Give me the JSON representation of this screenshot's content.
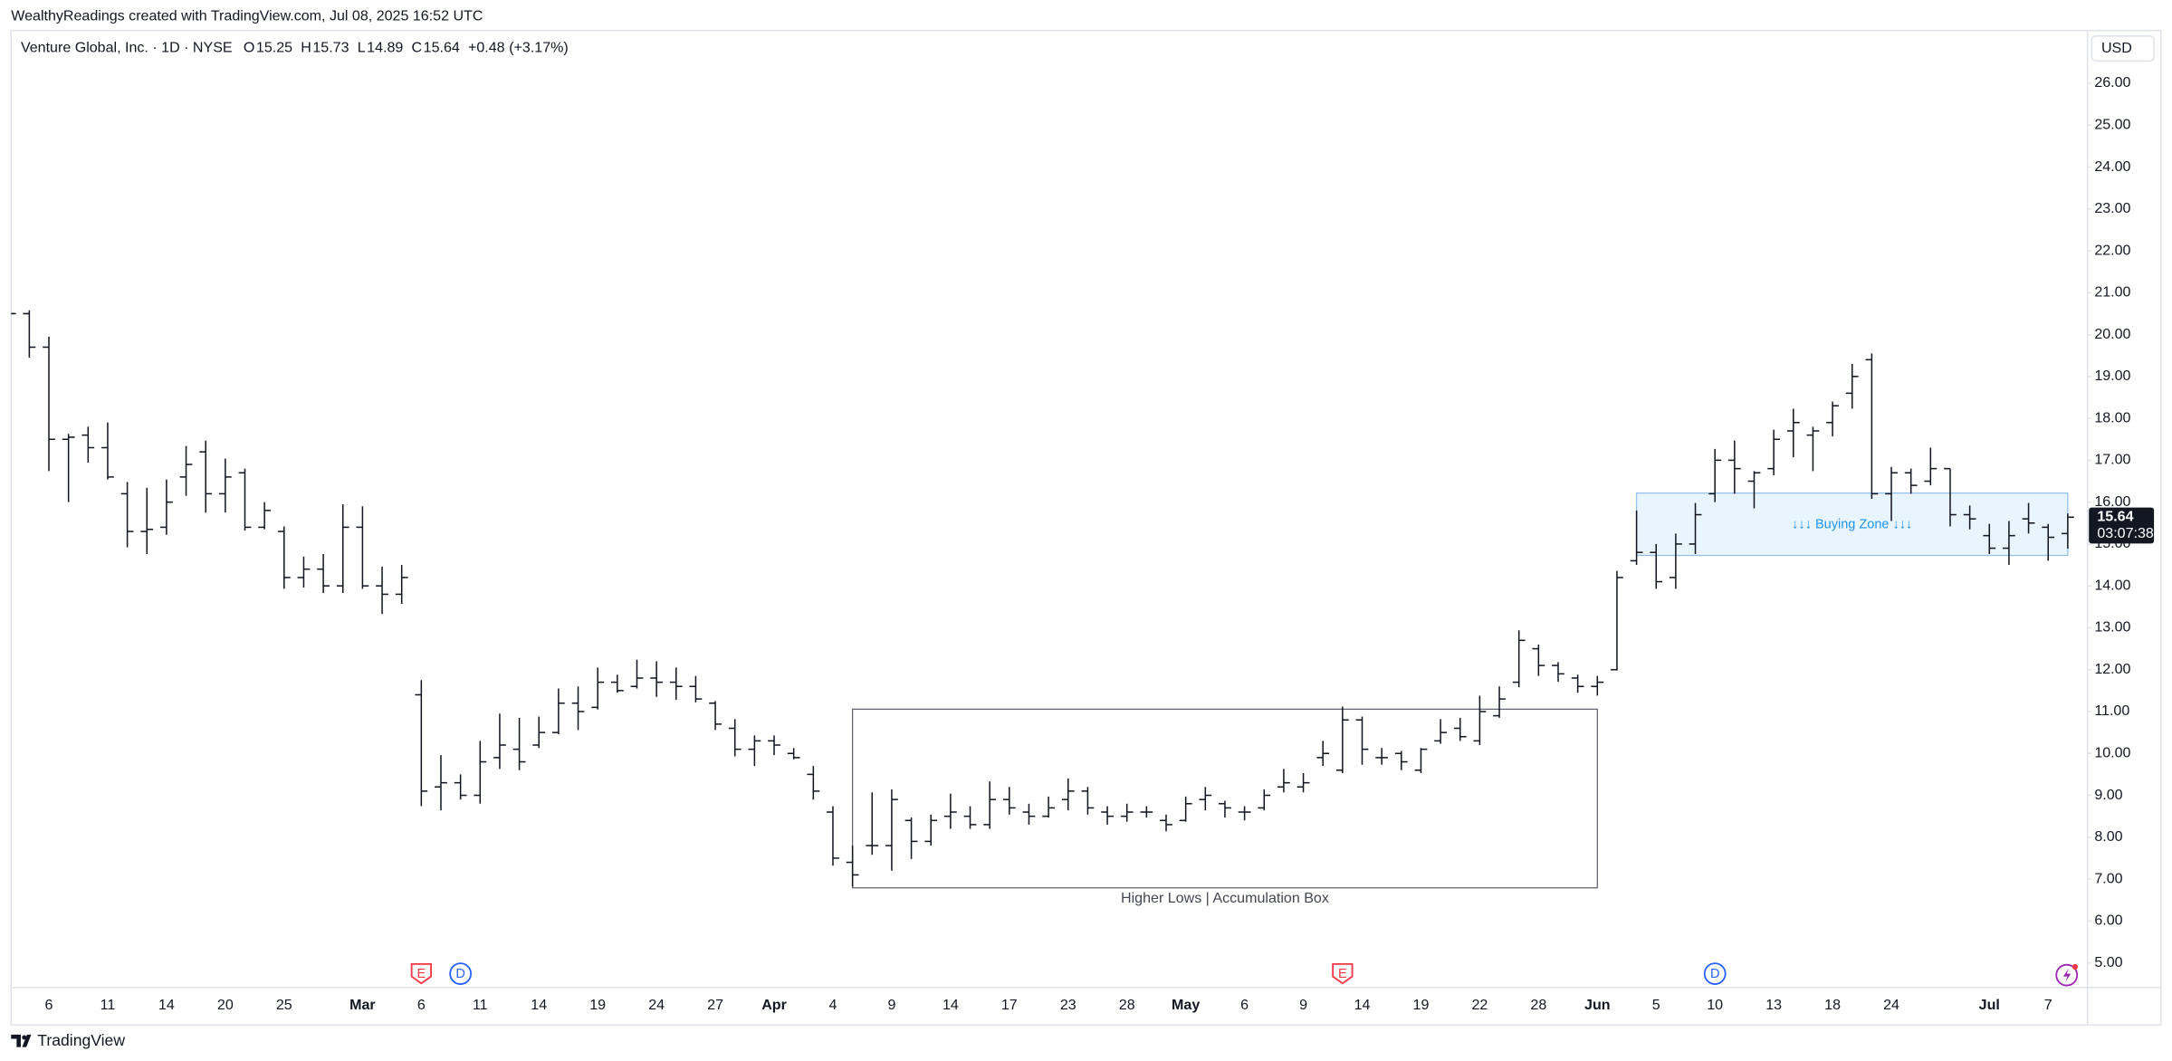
{
  "header": {
    "credit": "WealthyReadings created with TradingView.com, Jul 08, 2025 16:52 UTC",
    "brand": "TradingView"
  },
  "chart_data": {
    "type": "ohlc",
    "legend": {
      "symbol": "Venture Global, Inc. · 1D · NYSE",
      "fields": [
        "O",
        "H",
        "L",
        "C"
      ],
      "change": "+0.48",
      "change_pct": "(+3.17%)"
    },
    "currency": "USD",
    "countdown": "03:07:38",
    "color": "#131722",
    "grid": false,
    "categories": [
      null,
      null,
      "6",
      null,
      null,
      "11",
      null,
      null,
      "14",
      null,
      null,
      "20",
      null,
      null,
      "25",
      null,
      null,
      null,
      "Mar",
      null,
      null,
      "6",
      null,
      null,
      "11",
      null,
      null,
      "14",
      null,
      null,
      "19",
      null,
      null,
      "24",
      null,
      null,
      "27",
      null,
      null,
      "Apr",
      null,
      null,
      "4",
      null,
      null,
      "9",
      null,
      null,
      "14",
      null,
      null,
      "17",
      null,
      null,
      "23",
      null,
      null,
      "28",
      null,
      null,
      "May",
      null,
      null,
      "6",
      null,
      null,
      "9",
      null,
      null,
      "14",
      null,
      null,
      "19",
      null,
      null,
      "22",
      null,
      null,
      "28",
      null,
      null,
      "Jun",
      null,
      null,
      "5",
      null,
      null,
      "10",
      null,
      null,
      "13",
      null,
      null,
      "18",
      null,
      null,
      "24",
      null,
      null,
      null,
      null,
      "Jul",
      null,
      null,
      "7",
      null
    ],
    "open": [
      20.5,
      20.5,
      19.7,
      17.5,
      17.6,
      17.3,
      16.2,
      15.3,
      15.4,
      16.6,
      17.2,
      16.2,
      16.7,
      15.4,
      15.3,
      14.2,
      14.4,
      14.0,
      15.4,
      14.0,
      13.8,
      11.4,
      9.2,
      9.3,
      9.0,
      9.9,
      10.1,
      10.2,
      10.5,
      11.2,
      11.1,
      11.7,
      11.6,
      11.8,
      11.7,
      11.6,
      11.2,
      10.6,
      10.1,
      10.3,
      10.0,
      9.5,
      8.6,
      7.4,
      7.8,
      7.8,
      8.4,
      7.9,
      8.5,
      8.5,
      8.3,
      8.9,
      8.6,
      8.5,
      8.9,
      9.1,
      8.6,
      8.5,
      8.6,
      8.4,
      8.4,
      8.9,
      8.8,
      8.6,
      8.7,
      9.2,
      9.2,
      9.9,
      9.6,
      10.8,
      9.9,
      10.0,
      9.6,
      10.3,
      10.6,
      10.3,
      10.9,
      11.7,
      12.5,
      12.1,
      11.8,
      11.6,
      12.0,
      14.6,
      14.8,
      14.2,
      15.0,
      16.2,
      17.0,
      16.5,
      16.8,
      17.7,
      17.6,
      17.9,
      18.6,
      19.4,
      16.2,
      16.7,
      16.5,
      16.8,
      15.7,
      15.2,
      14.9,
      15.6,
      15.4,
      15.25
    ],
    "high": [
      20.55,
      20.58,
      19.95,
      17.63,
      17.8,
      17.9,
      16.48,
      16.34,
      16.54,
      17.34,
      17.47,
      17.04,
      16.8,
      16.0,
      15.42,
      14.7,
      14.76,
      15.95,
      15.9,
      14.46,
      14.5,
      11.75,
      9.96,
      9.5,
      10.3,
      10.95,
      10.85,
      10.88,
      11.55,
      11.6,
      12.05,
      11.88,
      12.24,
      12.2,
      12.05,
      11.85,
      11.25,
      10.82,
      10.43,
      10.43,
      10.13,
      9.7,
      8.74,
      7.8,
      9.07,
      9.14,
      8.47,
      8.54,
      9.04,
      8.74,
      9.33,
      9.2,
      8.8,
      8.97,
      9.4,
      9.2,
      8.74,
      8.8,
      8.74,
      8.54,
      8.97,
      9.2,
      8.87,
      8.74,
      9.14,
      9.63,
      9.53,
      10.3,
      11.12,
      10.88,
      10.13,
      10.06,
      10.13,
      10.82,
      10.85,
      11.38,
      11.6,
      12.94,
      12.6,
      12.18,
      11.88,
      11.85,
      14.36,
      15.8,
      15.0,
      15.25,
      15.98,
      17.27,
      17.47,
      16.74,
      17.73,
      18.23,
      17.8,
      18.4,
      19.3,
      19.55,
      16.84,
      16.8,
      17.3,
      16.8,
      15.92,
      15.48,
      15.55,
      15.98,
      15.48,
      15.73
    ],
    "low": [
      20.45,
      19.45,
      16.74,
      16.0,
      16.94,
      16.54,
      14.92,
      14.76,
      15.22,
      16.15,
      15.75,
      15.75,
      15.32,
      15.35,
      13.93,
      13.96,
      13.83,
      13.83,
      13.93,
      13.33,
      13.57,
      8.74,
      8.64,
      8.9,
      8.8,
      9.63,
      9.6,
      10.13,
      10.46,
      10.56,
      11.05,
      11.45,
      11.55,
      11.35,
      11.28,
      11.22,
      10.56,
      9.93,
      9.7,
      9.96,
      9.86,
      8.9,
      7.32,
      6.82,
      7.58,
      7.2,
      7.48,
      7.8,
      8.2,
      8.2,
      8.2,
      8.54,
      8.3,
      8.47,
      8.64,
      8.54,
      8.3,
      8.37,
      8.47,
      8.14,
      8.37,
      8.64,
      8.47,
      8.4,
      8.64,
      9.07,
      9.07,
      9.7,
      9.53,
      9.73,
      9.73,
      9.6,
      9.53,
      10.23,
      10.3,
      10.2,
      10.85,
      11.58,
      11.85,
      11.71,
      11.45,
      11.38,
      11.98,
      14.5,
      13.93,
      13.93,
      14.76,
      16.0,
      16.2,
      15.85,
      16.64,
      17.07,
      16.74,
      17.57,
      18.23,
      16.08,
      15.55,
      16.2,
      16.4,
      15.42,
      15.35,
      14.76,
      14.5,
      15.25,
      14.6,
      14.89
    ],
    "close": [
      20.5,
      19.7,
      17.5,
      17.55,
      17.3,
      16.6,
      15.3,
      15.35,
      16.0,
      16.9,
      16.2,
      16.6,
      15.4,
      15.8,
      14.2,
      14.4,
      14.0,
      15.4,
      14.0,
      13.8,
      14.2,
      9.1,
      9.3,
      9.0,
      9.8,
      10.2,
      9.8,
      10.5,
      11.2,
      11.0,
      11.7,
      11.5,
      11.8,
      11.7,
      11.6,
      11.3,
      10.7,
      10.1,
      10.3,
      10.2,
      9.9,
      9.1,
      7.5,
      7.1,
      7.8,
      8.9,
      7.9,
      8.4,
      8.6,
      8.3,
      8.9,
      8.7,
      8.5,
      8.7,
      9.1,
      8.7,
      8.5,
      8.6,
      8.6,
      8.3,
      8.8,
      9.0,
      8.7,
      8.6,
      9.0,
      9.3,
      9.3,
      10.0,
      10.8,
      10.1,
      9.9,
      9.8,
      10.1,
      10.5,
      10.4,
      11.0,
      11.3,
      12.7,
      12.1,
      11.9,
      11.6,
      11.7,
      14.2,
      14.8,
      14.1,
      15.0,
      15.7,
      17.0,
      16.8,
      16.7,
      17.5,
      17.9,
      17.7,
      18.3,
      19.0,
      16.2,
      16.7,
      16.4,
      16.8,
      15.7,
      15.6,
      14.9,
      15.2,
      15.5,
      15.16,
      15.64
    ],
    "ylim": [
      4.41,
      27.26
    ],
    "yticks": [
      {
        "value": 5,
        "label": "5.00"
      },
      {
        "value": 6,
        "label": "6.00"
      },
      {
        "value": 7,
        "label": "7.00"
      },
      {
        "value": 8,
        "label": "8.00"
      },
      {
        "value": 9,
        "label": "9.00"
      },
      {
        "value": 10,
        "label": "10.00"
      },
      {
        "value": 11,
        "label": "11.00"
      },
      {
        "value": 12,
        "label": "12.00"
      },
      {
        "value": 13,
        "label": "13.00"
      },
      {
        "value": 14,
        "label": "14.00"
      },
      {
        "value": 15,
        "label": "15.00"
      },
      {
        "value": 16,
        "label": "16.00"
      },
      {
        "value": 17,
        "label": "17.00"
      },
      {
        "value": 18,
        "label": "18.00"
      },
      {
        "value": 19,
        "label": "19.00"
      },
      {
        "value": 20,
        "label": "20.00"
      },
      {
        "value": 21,
        "label": "21.00"
      },
      {
        "value": 22,
        "label": "22.00"
      },
      {
        "value": 23,
        "label": "23.00"
      },
      {
        "value": 24,
        "label": "24.00"
      },
      {
        "value": 25,
        "label": "25.00"
      },
      {
        "value": 26,
        "label": "26.00"
      }
    ],
    "annotations": [
      "Higher Lows | Accumulation Box",
      "↓↓↓ Buying Zone ↓↓↓"
    ],
    "events": [
      "E",
      "D",
      "E",
      "D"
    ]
  }
}
